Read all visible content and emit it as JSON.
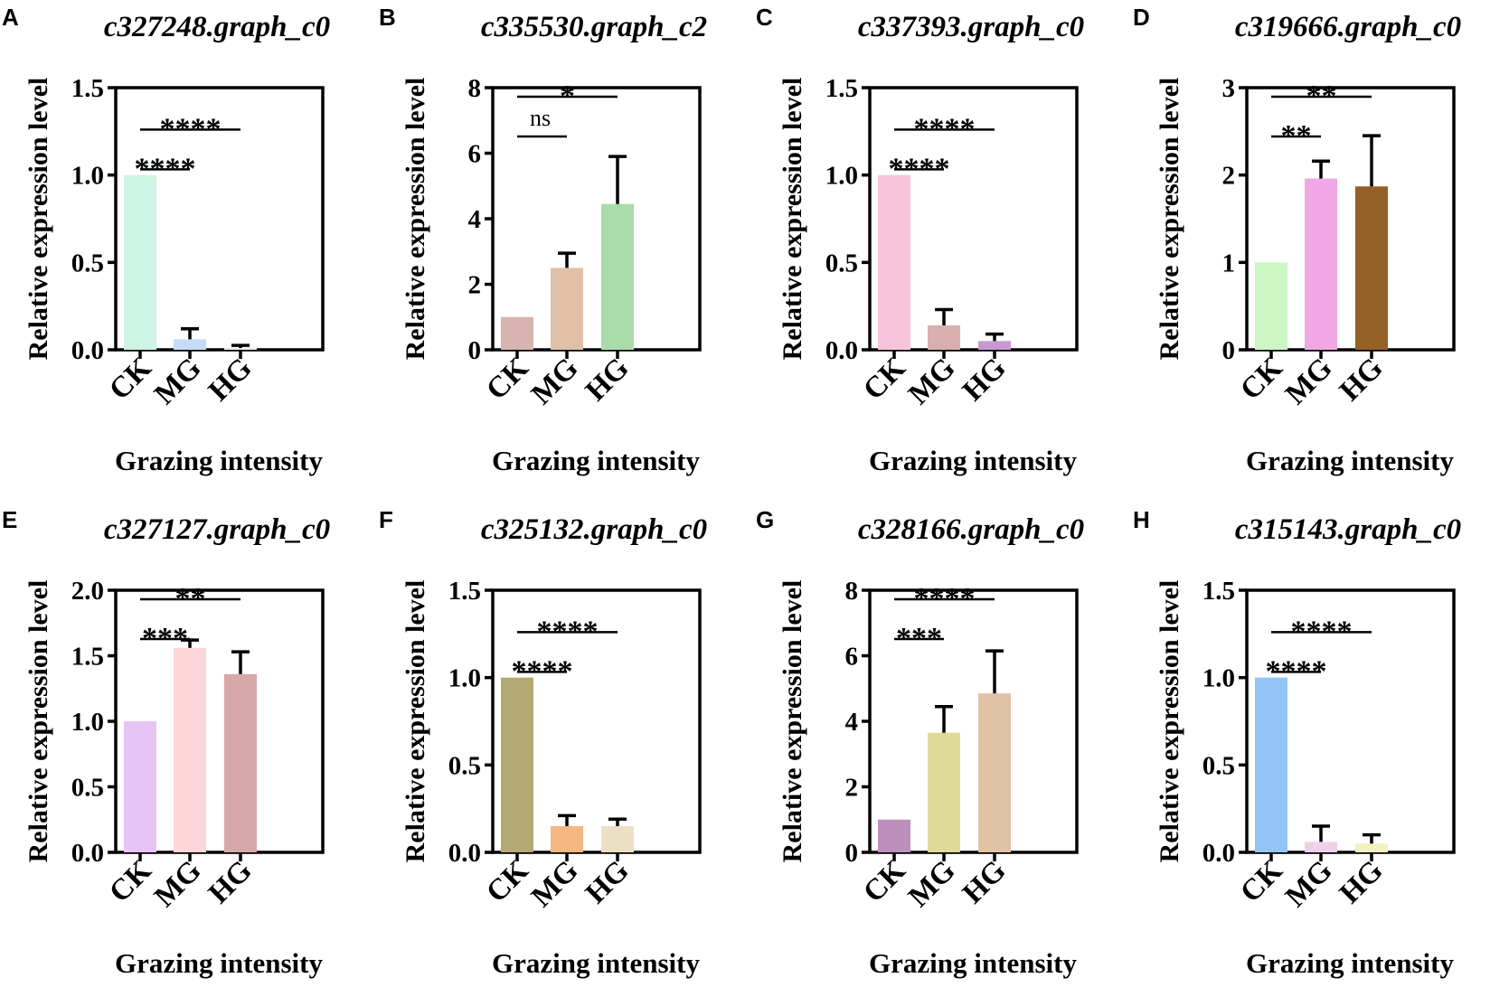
{
  "figure": {
    "layout_rows": 2,
    "layout_cols": 4
  },
  "chart_data": [
    {
      "panel": "A",
      "type": "bar",
      "title": "c327248.graph_c0",
      "xlabel": "Grazing intensity",
      "ylabel": "Relative expression level",
      "categories": [
        "CK",
        "MG",
        "HG"
      ],
      "values": [
        1.0,
        0.06,
        0.01
      ],
      "errors": [
        0,
        0.06,
        0.015
      ],
      "colors": [
        "#cdf4e4",
        "#c4dcf6",
        "#eeeeee"
      ],
      "ylim": [
        0,
        1.5
      ],
      "yticks": [
        0.0,
        0.5,
        1.0,
        1.5
      ],
      "ytick_labels": [
        "0.0",
        "0.5",
        "1.0",
        "1.5"
      ],
      "significance": [
        {
          "from": 0,
          "to": 1,
          "label": "****",
          "level": 1
        },
        {
          "from": 0,
          "to": 2,
          "label": "****",
          "level": 2
        }
      ]
    },
    {
      "panel": "B",
      "type": "bar",
      "title": "c335530.graph_c2",
      "xlabel": "Grazing intensity",
      "ylabel": "Relative expression level",
      "categories": [
        "CK",
        "MG",
        "HG"
      ],
      "values": [
        1.0,
        2.5,
        4.45
      ],
      "errors": [
        0,
        0.45,
        1.45
      ],
      "colors": [
        "#d9b3b0",
        "#e0c1a8",
        "#a9dcaa"
      ],
      "ylim": [
        0,
        8
      ],
      "yticks": [
        0,
        2,
        4,
        6,
        8
      ],
      "ytick_labels": [
        "0",
        "2",
        "4",
        "6",
        "8"
      ],
      "significance": [
        {
          "from": 0,
          "to": 1,
          "label": "ns",
          "level": 1
        },
        {
          "from": 0,
          "to": 2,
          "label": "*",
          "level": 2
        }
      ]
    },
    {
      "panel": "C",
      "type": "bar",
      "title": "c337393.graph_c0",
      "xlabel": "Grazing intensity",
      "ylabel": "Relative expression level",
      "categories": [
        "CK",
        "MG",
        "HG"
      ],
      "values": [
        1.0,
        0.14,
        0.05
      ],
      "errors": [
        0,
        0.09,
        0.04
      ],
      "colors": [
        "#f8c4dc",
        "#d8b0b0",
        "#c49ad0"
      ],
      "ylim": [
        0,
        1.5
      ],
      "yticks": [
        0.0,
        0.5,
        1.0,
        1.5
      ],
      "ytick_labels": [
        "0.0",
        "0.5",
        "1.0",
        "1.5"
      ],
      "significance": [
        {
          "from": 0,
          "to": 1,
          "label": "****",
          "level": 1
        },
        {
          "from": 0,
          "to": 2,
          "label": "****",
          "level": 2
        }
      ]
    },
    {
      "panel": "D",
      "type": "bar",
      "title": "c319666.graph_c0",
      "xlabel": "Grazing intensity",
      "ylabel": "Relative expression level",
      "categories": [
        "CK",
        "MG",
        "HG"
      ],
      "values": [
        1.0,
        1.96,
        1.87
      ],
      "errors": [
        0,
        0.2,
        0.58
      ],
      "colors": [
        "#ccf6c4",
        "#f0a8e4",
        "#936025"
      ],
      "ylim": [
        0,
        3
      ],
      "yticks": [
        0,
        1,
        2,
        3
      ],
      "ytick_labels": [
        "0",
        "1",
        "2",
        "3"
      ],
      "significance": [
        {
          "from": 0,
          "to": 1,
          "label": "**",
          "level": 1
        },
        {
          "from": 0,
          "to": 2,
          "label": "**",
          "level": 2
        }
      ]
    },
    {
      "panel": "E",
      "type": "bar",
      "title": "c327127.graph_c0",
      "xlabel": "Grazing intensity",
      "ylabel": "Relative expression level",
      "categories": [
        "CK",
        "MG",
        "HG"
      ],
      "values": [
        1.0,
        1.56,
        1.36
      ],
      "errors": [
        0,
        0.06,
        0.17
      ],
      "colors": [
        "#e8c4f6",
        "#fcd6d8",
        "#d6a8a8"
      ],
      "ylim": [
        0,
        2.0
      ],
      "yticks": [
        0.0,
        0.5,
        1.0,
        1.5,
        2.0
      ],
      "ytick_labels": [
        "0.0",
        "0.5",
        "1.0",
        "1.5",
        "2.0"
      ],
      "significance": [
        {
          "from": 0,
          "to": 1,
          "label": "***",
          "level": 1
        },
        {
          "from": 0,
          "to": 2,
          "label": "**",
          "level": 2
        }
      ]
    },
    {
      "panel": "F",
      "type": "bar",
      "title": "c325132.graph_c0",
      "xlabel": "Grazing intensity",
      "ylabel": "Relative expression level",
      "categories": [
        "CK",
        "MG",
        "HG"
      ],
      "values": [
        1.0,
        0.15,
        0.15
      ],
      "errors": [
        0,
        0.06,
        0.04
      ],
      "colors": [
        "#b4a873",
        "#f4b880",
        "#ece0c4"
      ],
      "ylim": [
        0,
        1.5
      ],
      "yticks": [
        0.0,
        0.5,
        1.0,
        1.5
      ],
      "ytick_labels": [
        "0.0",
        "0.5",
        "1.0",
        "1.5"
      ],
      "significance": [
        {
          "from": 0,
          "to": 1,
          "label": "****",
          "level": 1
        },
        {
          "from": 0,
          "to": 2,
          "label": "****",
          "level": 2
        }
      ]
    },
    {
      "panel": "G",
      "type": "bar",
      "title": "c328166.graph_c0",
      "xlabel": "Grazing intensity",
      "ylabel": "Relative expression level",
      "categories": [
        "CK",
        "MG",
        "HG"
      ],
      "values": [
        1.0,
        3.65,
        4.85
      ],
      "errors": [
        0,
        0.8,
        1.3
      ],
      "colors": [
        "#bd8fbc",
        "#dedb98",
        "#e0c2a6"
      ],
      "ylim": [
        0,
        8
      ],
      "yticks": [
        0,
        2,
        4,
        6,
        8
      ],
      "ytick_labels": [
        "0",
        "2",
        "4",
        "6",
        "8"
      ],
      "significance": [
        {
          "from": 0,
          "to": 1,
          "label": "***",
          "level": 1
        },
        {
          "from": 0,
          "to": 2,
          "label": "****",
          "level": 2
        }
      ]
    },
    {
      "panel": "H",
      "type": "bar",
      "title": "c315143.graph_c0",
      "xlabel": "Grazing intensity",
      "ylabel": "Relative expression level",
      "categories": [
        "CK",
        "MG",
        "HG"
      ],
      "values": [
        1.0,
        0.06,
        0.05
      ],
      "errors": [
        0,
        0.09,
        0.05
      ],
      "colors": [
        "#94c4f6",
        "#f0d0e8",
        "#f4f0c0"
      ],
      "ylim": [
        0,
        1.5
      ],
      "yticks": [
        0.0,
        0.5,
        1.0,
        1.5
      ],
      "ytick_labels": [
        "0.0",
        "0.5",
        "1.0",
        "1.5"
      ],
      "significance": [
        {
          "from": 0,
          "to": 1,
          "label": "****",
          "level": 1
        },
        {
          "from": 0,
          "to": 2,
          "label": "****",
          "level": 2
        }
      ]
    }
  ]
}
